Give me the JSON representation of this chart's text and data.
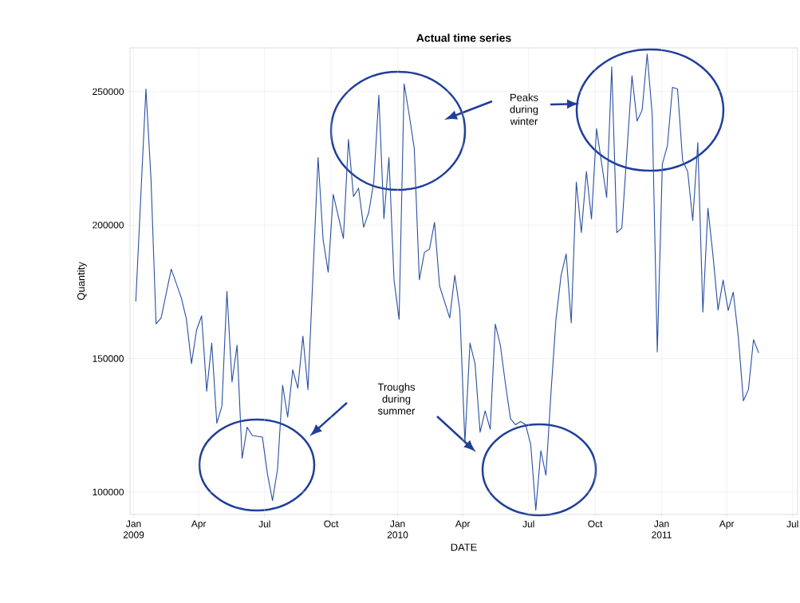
{
  "chart_data": {
    "type": "line",
    "title": "Actual time series",
    "xlabel": "DATE",
    "ylabel": "Quantity",
    "x": [
      "2009-01-04",
      "2009-01-18",
      "2009-01-25",
      "2009-02-01",
      "2009-02-08",
      "2009-02-22",
      "2009-03-08",
      "2009-03-15",
      "2009-03-22",
      "2009-03-29",
      "2009-04-05",
      "2009-04-12",
      "2009-04-19",
      "2009-04-26",
      "2009-05-03",
      "2009-05-10",
      "2009-05-17",
      "2009-05-24",
      "2009-05-31",
      "2009-06-07",
      "2009-06-14",
      "2009-06-28",
      "2009-07-05",
      "2009-07-12",
      "2009-07-19",
      "2009-07-26",
      "2009-08-02",
      "2009-08-09",
      "2009-08-16",
      "2009-08-23",
      "2009-08-30",
      "2009-09-13",
      "2009-09-20",
      "2009-09-27",
      "2009-10-04",
      "2009-10-18",
      "2009-10-25",
      "2009-11-01",
      "2009-11-08",
      "2009-11-15",
      "2009-11-22",
      "2009-11-29",
      "2009-12-06",
      "2009-12-13",
      "2009-12-20",
      "2009-12-27",
      "2010-01-03",
      "2010-01-10",
      "2010-01-17",
      "2010-01-24",
      "2010-01-31",
      "2010-02-07",
      "2010-02-14",
      "2010-02-21",
      "2010-02-28",
      "2010-03-14",
      "2010-03-21",
      "2010-03-28",
      "2010-04-04",
      "2010-04-11",
      "2010-04-18",
      "2010-04-25",
      "2010-05-02",
      "2010-05-09",
      "2010-05-16",
      "2010-05-23",
      "2010-05-30",
      "2010-06-06",
      "2010-06-13",
      "2010-06-20",
      "2010-06-27",
      "2010-07-04",
      "2010-07-11",
      "2010-07-18",
      "2010-07-25",
      "2010-08-01",
      "2010-08-08",
      "2010-08-15",
      "2010-08-22",
      "2010-08-29",
      "2010-09-05",
      "2010-09-12",
      "2010-09-19",
      "2010-09-26",
      "2010-10-03",
      "2010-10-17",
      "2010-10-24",
      "2010-10-31",
      "2010-11-07",
      "2010-11-21",
      "2010-11-28",
      "2010-12-05",
      "2010-12-12",
      "2010-12-19",
      "2010-12-26",
      "2011-01-02",
      "2011-01-09",
      "2011-01-16",
      "2011-01-23",
      "2011-01-30",
      "2011-02-06",
      "2011-02-13",
      "2011-02-20",
      "2011-02-27",
      "2011-03-06",
      "2011-03-13",
      "2011-03-20",
      "2011-03-27",
      "2011-04-03",
      "2011-04-10",
      "2011-04-17",
      "2011-04-24",
      "2011-05-01",
      "2011-05-08",
      "2011-05-15"
    ],
    "values": [
      171500,
      251000,
      217300,
      163000,
      165200,
      183500,
      172700,
      164700,
      148100,
      160700,
      166000,
      137800,
      155800,
      125800,
      132100,
      175200,
      141200,
      155000,
      112600,
      124300,
      121200,
      120600,
      106800,
      96800,
      108700,
      140000,
      128100,
      145800,
      138900,
      158400,
      138400,
      225300,
      194400,
      182400,
      211500,
      195000,
      232100,
      210700,
      213800,
      199200,
      204700,
      216100,
      248700,
      202400,
      225300,
      179500,
      164700,
      252900,
      241300,
      228700,
      179500,
      189800,
      191000,
      201000,
      177200,
      165200,
      181200,
      168100,
      118400,
      155800,
      148100,
      122400,
      130400,
      123500,
      162900,
      155000,
      140600,
      127500,
      125200,
      126400,
      125200,
      117800,
      93200,
      115500,
      106300,
      137200,
      165000,
      181200,
      189200,
      163400,
      216100,
      197200,
      220100,
      202300,
      236100,
      210300,
      259300,
      197200,
      198900,
      255900,
      239000,
      243000,
      264100,
      241200,
      152500,
      222900,
      229800,
      251600,
      251000,
      224100,
      220100,
      201700,
      230900,
      167400,
      206300,
      188600,
      168200,
      179400,
      168000,
      174900,
      158200,
      134200,
      138400,
      157100,
      152200
    ],
    "color": "#2a4fa3",
    "xlim": [
      "2008-12-27",
      "2011-07-08"
    ],
    "xticks": [
      {
        "value": "2009-01",
        "label": "Jan 2009"
      },
      {
        "value": "2009-04",
        "label": "Apr"
      },
      {
        "value": "2009-07",
        "label": "Jul"
      },
      {
        "value": "2009-10",
        "label": "Oct"
      },
      {
        "value": "2010-01",
        "label": "Jan 2010"
      },
      {
        "value": "2010-04",
        "label": "Apr"
      },
      {
        "value": "2010-07",
        "label": "Jul"
      },
      {
        "value": "2010-10",
        "label": "Oct"
      },
      {
        "value": "2011-01",
        "label": "Jan 2011"
      },
      {
        "value": "2011-04",
        "label": "Apr"
      },
      {
        "value": "2011-07",
        "label": "Jul"
      }
    ],
    "ylim": [
      91600,
      266400
    ],
    "yticks": [
      100000,
      150000,
      200000,
      250000
    ],
    "grid": true,
    "marker": "none",
    "line_style": "solid",
    "annotations": [
      "Peaks during winter",
      "Troughs during summer"
    ]
  }
}
